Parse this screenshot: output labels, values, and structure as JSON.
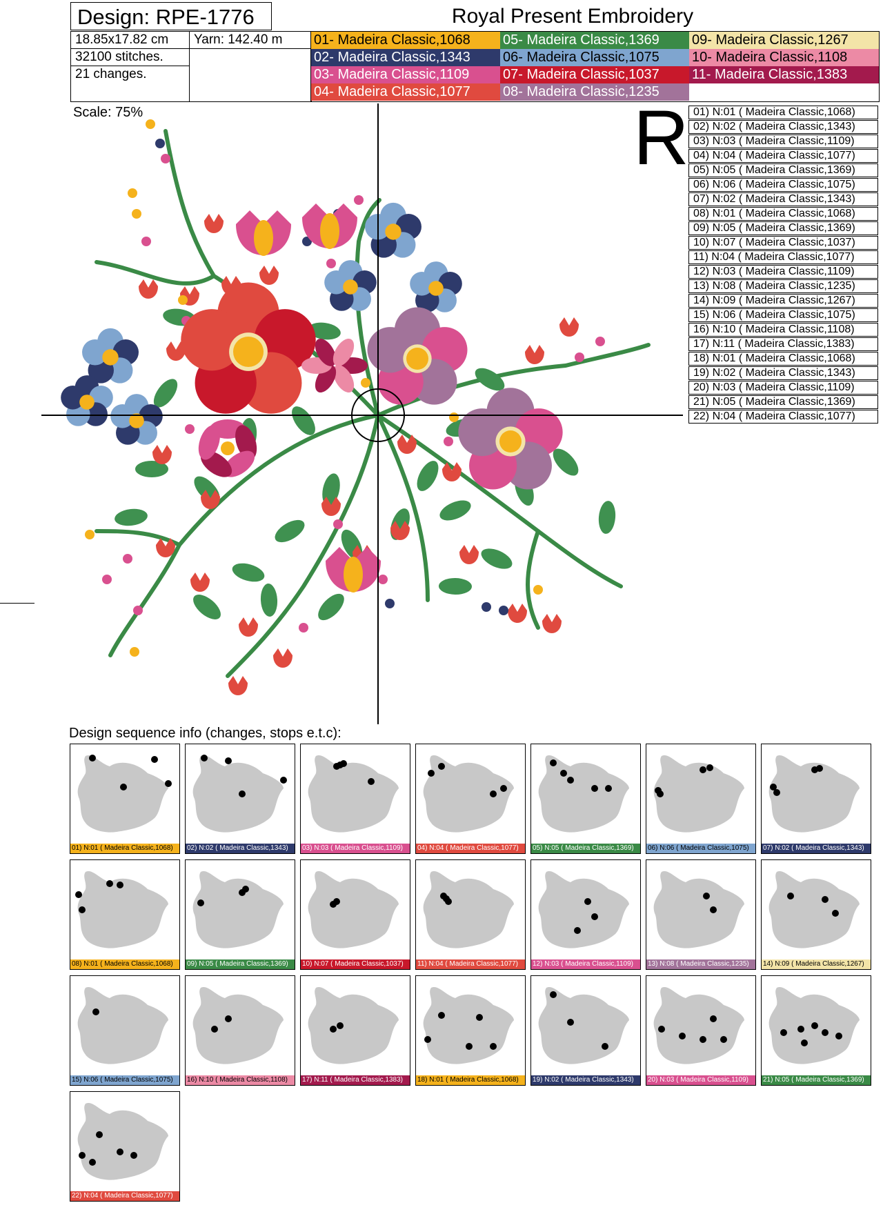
{
  "header": {
    "design_label": "Design: RPE-1776",
    "brand": "Royal Present Embroidery"
  },
  "info": {
    "size": "18.85x17.82 cm",
    "yarn": "Yarn: 142.40 m",
    "stitches": "32100 stitches.",
    "changes": "21 changes."
  },
  "palette": [
    {
      "label": "01- Madeira Classic,1068",
      "color": "#f5b21c",
      "text": "#000"
    },
    {
      "label": "02- Madeira Classic,1343",
      "color": "#2e3a6b",
      "text": "#fff"
    },
    {
      "label": "03- Madeira Classic,1109",
      "color": "#d9508f",
      "text": "#fff"
    },
    {
      "label": "04- Madeira Classic,1077",
      "color": "#e04a3f",
      "text": "#fff"
    },
    {
      "label": "05- Madeira Classic,1369",
      "color": "#3a8a46",
      "text": "#fff"
    },
    {
      "label": "06- Madeira Classic,1075",
      "color": "#7fa5cf",
      "text": "#000"
    },
    {
      "label": "07- Madeira Classic,1037",
      "color": "#c8182b",
      "text": "#fff"
    },
    {
      "label": "08- Madeira Classic,1235",
      "color": "#a2739a",
      "text": "#fff"
    },
    {
      "label": "09- Madeira Classic,1267",
      "color": "#f3e4a8",
      "text": "#000"
    },
    {
      "label": "10- Madeira Classic,1108",
      "color": "#ec8aa5",
      "text": "#000"
    },
    {
      "label": "11- Madeira Classic,1383",
      "color": "#a31a4d",
      "text": "#fff"
    }
  ],
  "scale": "Scale: 75%",
  "reg_letter": "R",
  "sequence": [
    {
      "label": "01) N:01 ( Madeira Classic,1068)",
      "color": "#f5b21c",
      "text": "#000"
    },
    {
      "label": "02) N:02 ( Madeira Classic,1343)",
      "color": "#2e3a6b",
      "text": "#fff"
    },
    {
      "label": "03) N:03 ( Madeira Classic,1109)",
      "color": "#d9508f",
      "text": "#fff"
    },
    {
      "label": "04) N:04 ( Madeira Classic,1077)",
      "color": "#e04a3f",
      "text": "#fff"
    },
    {
      "label": "05) N:05 ( Madeira Classic,1369)",
      "color": "#3a8a46",
      "text": "#fff"
    },
    {
      "label": "06) N:06 ( Madeira Classic,1075)",
      "color": "#7fa5cf",
      "text": "#000"
    },
    {
      "label": "07) N:02 ( Madeira Classic,1343)",
      "color": "#2e3a6b",
      "text": "#fff"
    },
    {
      "label": "08) N:01 ( Madeira Classic,1068)",
      "color": "#f5b21c",
      "text": "#000"
    },
    {
      "label": "09) N:05 ( Madeira Classic,1369)",
      "color": "#3a8a46",
      "text": "#fff"
    },
    {
      "label": "10) N:07 ( Madeira Classic,1037)",
      "color": "#c8182b",
      "text": "#fff"
    },
    {
      "label": "11) N:04 ( Madeira Classic,1077)",
      "color": "#e04a3f",
      "text": "#fff"
    },
    {
      "label": "12) N:03 ( Madeira Classic,1109)",
      "color": "#d9508f",
      "text": "#fff"
    },
    {
      "label": "13) N:08 ( Madeira Classic,1235)",
      "color": "#a2739a",
      "text": "#fff"
    },
    {
      "label": "14) N:09 ( Madeira Classic,1267)",
      "color": "#f3e4a8",
      "text": "#000"
    },
    {
      "label": "15) N:06 ( Madeira Classic,1075)",
      "color": "#7fa5cf",
      "text": "#000"
    },
    {
      "label": "16) N:10 ( Madeira Classic,1108)",
      "color": "#ec8aa5",
      "text": "#000"
    },
    {
      "label": "17) N:11 ( Madeira Classic,1383)",
      "color": "#a31a4d",
      "text": "#fff"
    },
    {
      "label": "18) N:01 ( Madeira Classic,1068)",
      "color": "#f5b21c",
      "text": "#000"
    },
    {
      "label": "19) N:02 ( Madeira Classic,1343)",
      "color": "#2e3a6b",
      "text": "#fff"
    },
    {
      "label": "20) N:03 ( Madeira Classic,1109)",
      "color": "#d9508f",
      "text": "#fff"
    },
    {
      "label": "21) N:05 ( Madeira Classic,1369)",
      "color": "#3a8a46",
      "text": "#fff"
    },
    {
      "label": "22) N:04 ( Madeira Classic,1077)",
      "color": "#e04a3f",
      "text": "#fff"
    }
  ],
  "sequence_heading": "Design sequence info (changes, stops e.t.c):",
  "colors": {
    "leaf": "#3f9150",
    "stem": "#3a8a46",
    "silhouette": "#c8c8c8",
    "highlight": "#000000"
  }
}
